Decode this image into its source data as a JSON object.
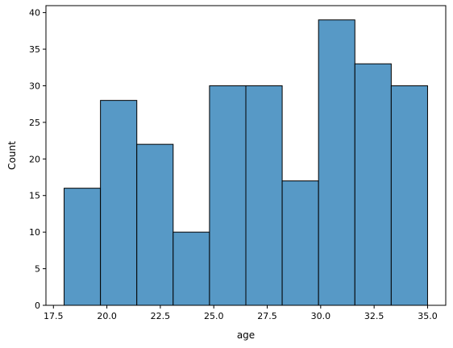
{
  "chart_data": {
    "type": "bar",
    "title": "",
    "xlabel": "age",
    "ylabel": "Count",
    "bin_edges": [
      18.0,
      19.7,
      21.4,
      23.1,
      24.8,
      26.5,
      28.2,
      29.9,
      31.6,
      33.3,
      35.0
    ],
    "counts": [
      16,
      28,
      22,
      10,
      30,
      30,
      17,
      39,
      33,
      30
    ],
    "xlim": [
      17.15,
      35.85
    ],
    "ylim": [
      0,
      40.95
    ],
    "xticks": [
      "17.5",
      "20.0",
      "22.5",
      "25.0",
      "27.5",
      "30.0",
      "32.5",
      "35.0"
    ],
    "yticks": [
      "0",
      "5",
      "10",
      "15",
      "20",
      "25",
      "30",
      "35",
      "40"
    ],
    "grid": false,
    "bar_color": "#5799c6",
    "edge_color": "#000000"
  }
}
